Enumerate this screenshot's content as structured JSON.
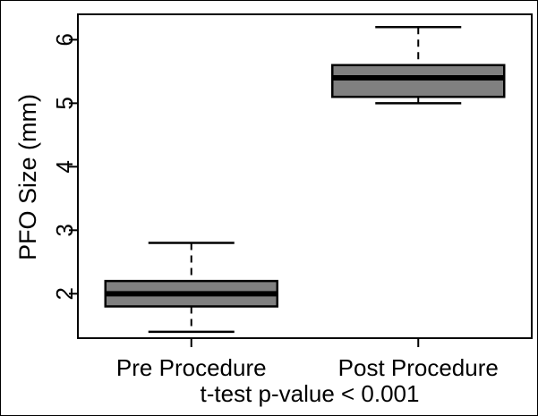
{
  "chart_data": {
    "type": "boxplot",
    "ylabel": "PFO Size (mm)",
    "xlabel": "t-test p-value < 0.001",
    "ylim": [
      1.3,
      6.4
    ],
    "yticks": [
      2,
      3,
      4,
      5,
      6
    ],
    "categories": [
      "Pre Procedure",
      "Post Procedure"
    ],
    "boxes": [
      {
        "category": "Pre Procedure",
        "min": 1.4,
        "q1": 1.8,
        "median": 2.0,
        "q3": 2.2,
        "max": 2.8
      },
      {
        "category": "Post Procedure",
        "min": 5.0,
        "q1": 5.1,
        "median": 5.4,
        "q3": 5.6,
        "max": 6.2
      }
    ],
    "colors": {
      "box_fill": "#808080",
      "line": "#000000"
    }
  }
}
